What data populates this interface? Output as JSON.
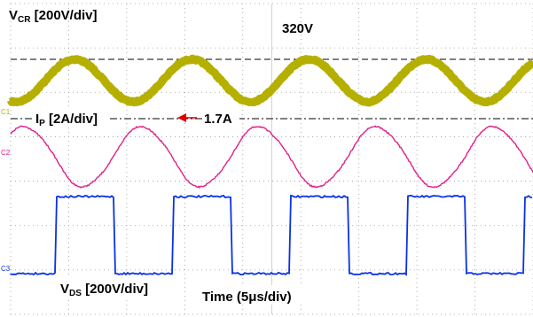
{
  "chart_data": {
    "type": "line",
    "title": "",
    "xlabel": "Time (5μs/div)",
    "x_unit": "μs",
    "x_range_us": [
      0,
      45
    ],
    "grid": true,
    "divisions": {
      "x": 9,
      "y": 7
    },
    "series": [
      {
        "channel": "C1",
        "label_main": "V",
        "label_sub": "CR",
        "label_rest": " [200V/div]",
        "color": "#b5b000",
        "shape": "sinusoid",
        "period_us": 10.1,
        "min_V": -45,
        "max_V": 320
      },
      {
        "channel": "C2",
        "label_main": "I",
        "label_sub": "P",
        "label_rest": " [2A/div]",
        "color": "#e0208a",
        "shape": "sinusoid",
        "period_us": 10.1,
        "peak_A": 1.7,
        "min_A": -1.1
      },
      {
        "channel": "C3",
        "label_main": "V",
        "label_sub": "DS",
        "label_rest": " [200V/div]",
        "color": "#0a32e6",
        "shape": "square",
        "period_us": 10.1,
        "duty": 0.5,
        "low_V": 0,
        "high_V": 400
      }
    ],
    "annotations": {
      "vcr_peak_label": "320V",
      "ip_peak_label": "1.7A"
    }
  },
  "colors": {
    "grid": "#9a9a9a",
    "reference_line": "#000000",
    "arrow": "#e00000"
  }
}
